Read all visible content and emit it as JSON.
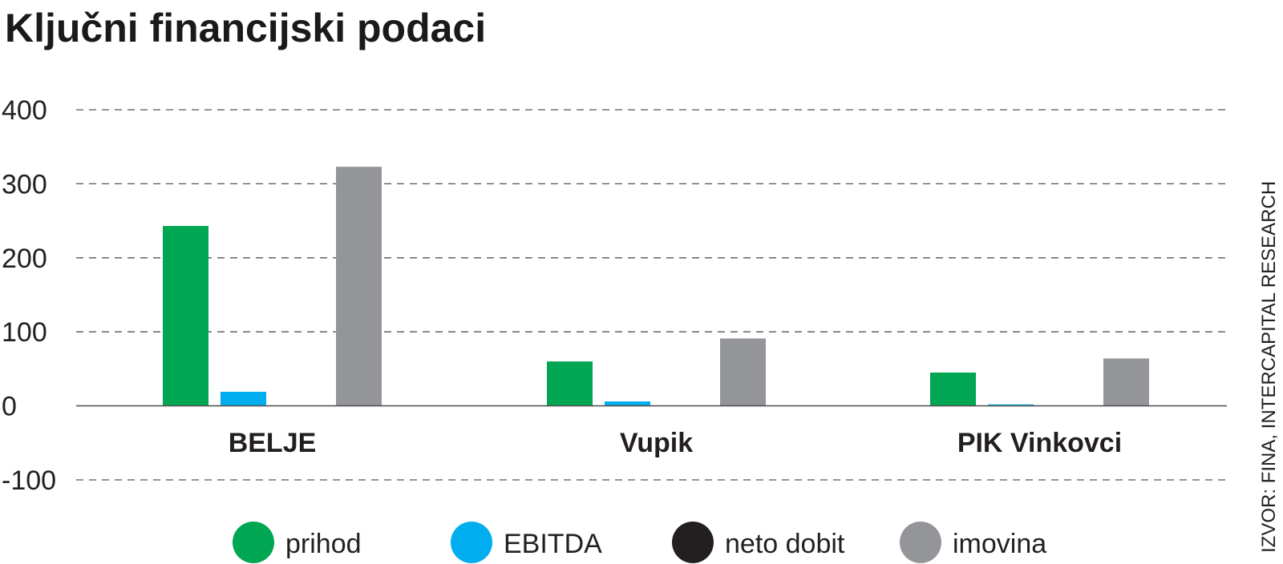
{
  "chart_data": {
    "type": "bar",
    "title": "Ključni financijski podaci",
    "categories": [
      "BELJE",
      "Vupik",
      "PIK Vinkovci"
    ],
    "series": [
      {
        "name": "prihod",
        "color": "#00a651",
        "values": [
          243,
          60,
          45
        ]
      },
      {
        "name": "EBITDA",
        "color": "#00aeef",
        "values": [
          19,
          6,
          2
        ]
      },
      {
        "name": "neto dobit",
        "color": "#231f20",
        "values": [
          0,
          0,
          0
        ]
      },
      {
        "name": "imovina",
        "color": "#939598",
        "values": [
          323,
          91,
          64
        ]
      }
    ],
    "ylim": [
      -100,
      400
    ],
    "yticks": [
      400,
      300,
      200,
      100,
      0,
      -100
    ],
    "ytick_labels": [
      "400",
      "300",
      "200",
      "100",
      "0",
      "-100"
    ],
    "grid": true,
    "legend_position": "bottom",
    "source": "IZVOR: FINA, INTERCAPITAL RESEARCH"
  }
}
